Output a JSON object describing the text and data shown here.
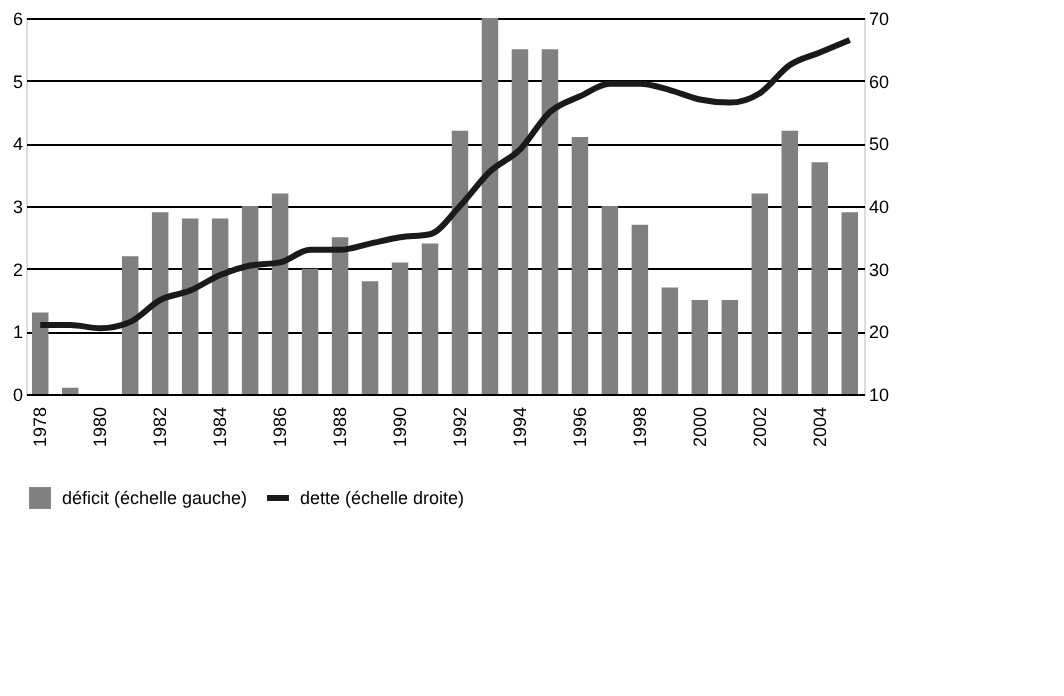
{
  "chart_data": {
    "type": "bar",
    "categories": [
      "1978",
      null,
      "1980",
      null,
      "1982",
      null,
      "1984",
      null,
      "1986",
      null,
      "1988",
      null,
      "1990",
      null,
      "1992",
      null,
      "1994",
      null,
      "1996",
      null,
      "1998",
      null,
      "2000",
      null,
      "2002",
      null,
      "2004",
      null
    ],
    "series": [
      {
        "name": "déficit (échelle gauche)",
        "color": "#808080",
        "values": [
          1.3,
          0.1,
          0,
          2.2,
          2.9,
          2.8,
          2.8,
          3.0,
          3.2,
          2.0,
          2.5,
          1.8,
          2.1,
          2.4,
          4.2,
          6.0,
          5.5,
          5.5,
          4.1,
          3.0,
          2.7,
          1.7,
          1.5,
          1.5,
          3.2,
          4.2,
          3.7,
          2.9
        ]
      },
      {
        "name": "dette (échelle droite)",
        "color": "#1a1a1a",
        "type": "line",
        "axis": "y2",
        "values": [
          21,
          21,
          20.5,
          21.5,
          25,
          26.5,
          29,
          30.5,
          31,
          33,
          33,
          34,
          35,
          35.5,
          40,
          45.5,
          49,
          55,
          57.5,
          59.5,
          59.5,
          58.5,
          57,
          56.5,
          58,
          62.5,
          64.5,
          66.5
        ]
      }
    ],
    "ylim": [
      0,
      6
    ],
    "yticks": [
      0,
      1,
      2,
      3,
      4,
      5,
      6
    ],
    "y2lim": [
      10,
      70
    ],
    "y2ticks": [
      10,
      20,
      30,
      40,
      50,
      60,
      70
    ],
    "grid": "y",
    "legend": "bottom"
  }
}
